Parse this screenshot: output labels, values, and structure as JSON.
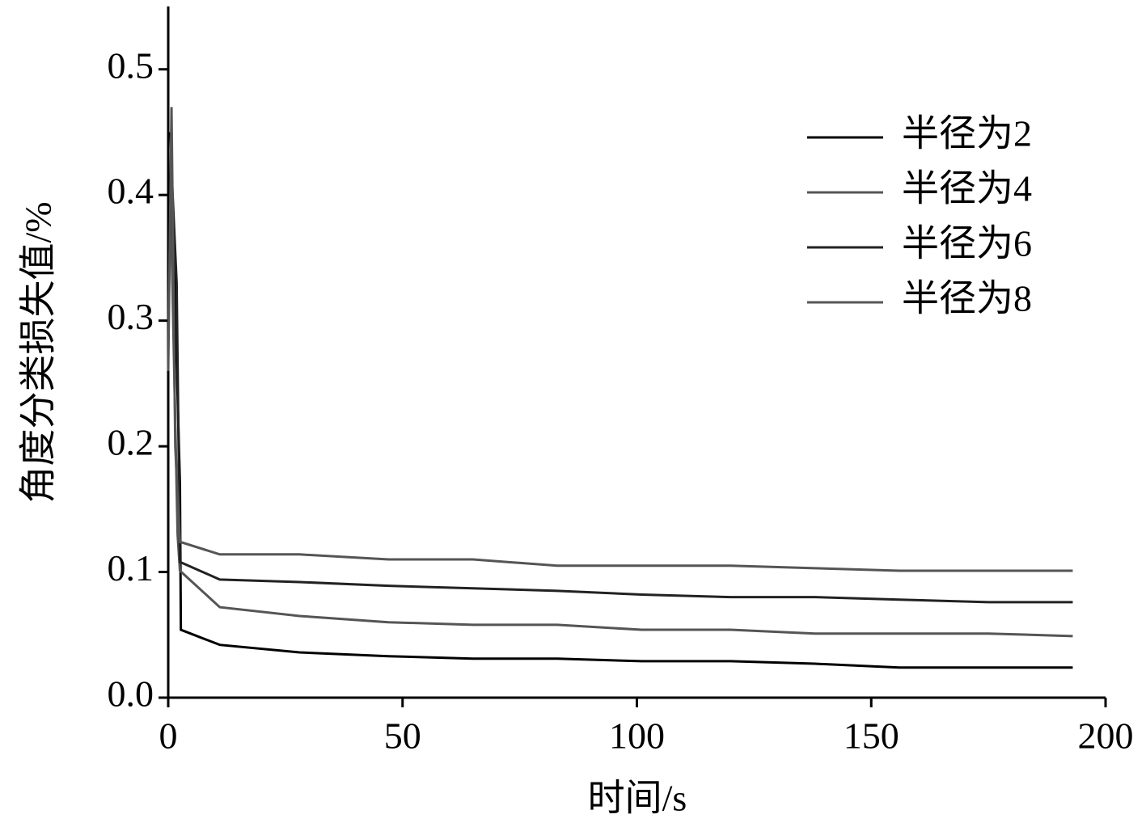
{
  "chart_data": {
    "type": "line",
    "xlabel": "时间/s",
    "ylabel": "角度分类损失值/%",
    "xlim": [
      0,
      200
    ],
    "xticks": [
      0,
      50,
      100,
      150,
      200
    ],
    "ylim": [
      0,
      0.55
    ],
    "yticks": [
      {
        "value": 0,
        "label": "0.0"
      },
      0.1,
      0.2,
      0.3,
      0.4,
      0.5
    ],
    "legend": "upper right",
    "series": [
      {
        "name": "半径为2",
        "color": "#000000",
        "x": [
          0.5,
          2.5,
          2.7,
          11,
          28,
          47,
          65,
          83,
          101,
          120,
          138,
          156,
          175,
          193
        ],
        "values": [
          0.45,
          0.17,
          0.054,
          0.042,
          0.036,
          0.033,
          0.031,
          0.031,
          0.029,
          0.029,
          0.027,
          0.024,
          0.024,
          0.024
        ]
      },
      {
        "name": "半径为4",
        "color": "#555555",
        "x": [
          0.5,
          2,
          2.5,
          11,
          28,
          47,
          65,
          83,
          101,
          120,
          138,
          156,
          175,
          193
        ],
        "values": [
          0.4,
          0.13,
          0.101,
          0.072,
          0.065,
          0.06,
          0.058,
          0.058,
          0.054,
          0.054,
          0.051,
          0.051,
          0.051,
          0.049
        ]
      },
      {
        "name": "半径为6",
        "color": "#222222",
        "x": [
          0,
          0.7,
          1.8,
          2.5,
          11,
          28,
          47,
          65,
          83,
          101,
          120,
          138,
          156,
          175,
          193
        ],
        "values": [
          0.3,
          0.42,
          0.33,
          0.108,
          0.094,
          0.092,
          0.089,
          0.087,
          0.085,
          0.082,
          0.08,
          0.08,
          0.078,
          0.076,
          0.076
        ]
      },
      {
        "name": "半径为8",
        "color": "#555555",
        "x": [
          0,
          0.7,
          1.5,
          2.5,
          11,
          28,
          47,
          65,
          83,
          101,
          120,
          138,
          156,
          175,
          193
        ],
        "values": [
          0.26,
          0.47,
          0.2,
          0.124,
          0.114,
          0.114,
          0.11,
          0.11,
          0.105,
          0.105,
          0.105,
          0.103,
          0.101,
          0.101,
          0.101
        ]
      }
    ]
  }
}
